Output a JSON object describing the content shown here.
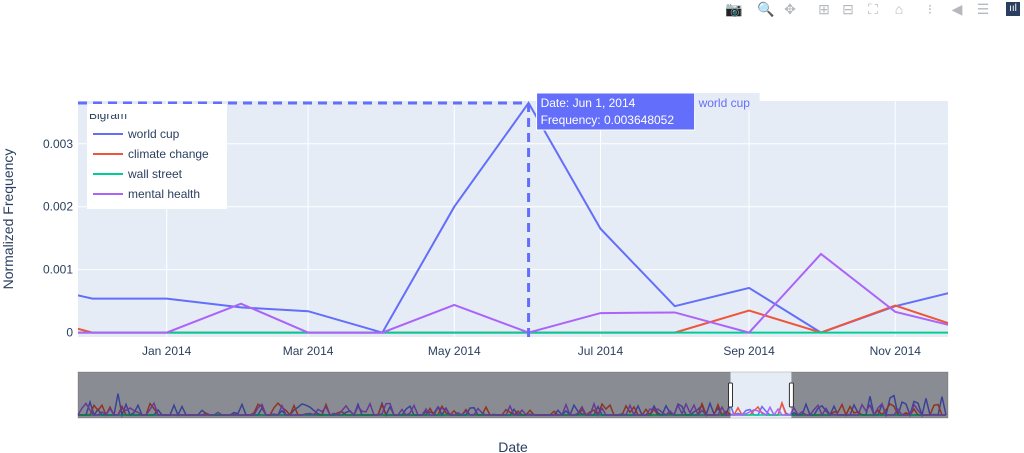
{
  "toolbar": {
    "icons": [
      "camera-icon",
      "zoom-icon",
      "pan-icon",
      "zoom-in-icon",
      "zoom-out-icon",
      "autoscale-icon",
      "reset-axes-icon",
      "spike-lines-icon",
      "hover-closest-icon",
      "hover-compare-icon",
      "plotly-logo-icon"
    ]
  },
  "chart_data": {
    "type": "line",
    "xlabel": "Date",
    "ylabel": "Normalized Frequency",
    "x_range": [
      "2013-11-25",
      "2014-11-23"
    ],
    "ylim": [
      -7e-05,
      0.00368
    ],
    "grid": true,
    "x_ticks": [
      {
        "date": "2014-01-01",
        "label": "Jan 2014"
      },
      {
        "date": "2014-03-01",
        "label": "Mar 2014"
      },
      {
        "date": "2014-05-01",
        "label": "May 2014"
      },
      {
        "date": "2014-07-01",
        "label": "Jul 2014"
      },
      {
        "date": "2014-09-01",
        "label": "Sep 2014"
      },
      {
        "date": "2014-11-01",
        "label": "Nov 2014"
      }
    ],
    "y_ticks": [
      {
        "value": 0,
        "label": "0"
      },
      {
        "value": 0.001,
        "label": "0.001"
      },
      {
        "value": 0.002,
        "label": "0.002"
      },
      {
        "value": 0.003,
        "label": "0.003"
      }
    ],
    "legend": {
      "title": "Bigram",
      "position": "top-left"
    },
    "x": [
      "2013-11-01",
      "2013-12-01",
      "2014-01-01",
      "2014-02-01",
      "2014-03-01",
      "2014-04-01",
      "2014-05-01",
      "2014-06-01",
      "2014-07-01",
      "2014-08-01",
      "2014-09-01",
      "2014-10-01",
      "2014-11-01",
      "2014-12-01"
    ],
    "series": [
      {
        "name": "world cup",
        "color": "#636efa",
        "values": [
          0.0008,
          0.00054,
          0.00054,
          0.0004,
          0.00034,
          0,
          0.002,
          0.003648052,
          0.00165,
          0.00042,
          0.00071,
          0,
          0.00042,
          0.0007
        ]
      },
      {
        "name": "climate change",
        "color": "#ef553b",
        "values": [
          0.0003,
          0,
          0,
          0,
          0,
          0,
          0,
          0,
          0,
          0,
          0.00035,
          0,
          0.00043,
          5e-05
        ]
      },
      {
        "name": "wall street",
        "color": "#00cc96",
        "values": [
          0,
          0,
          0,
          0,
          0,
          0,
          0,
          0,
          0,
          0,
          0,
          0,
          0,
          0
        ]
      },
      {
        "name": "mental health",
        "color": "#ab63fa",
        "values": [
          0,
          0,
          0,
          0.00046,
          0,
          0,
          0.00044,
          0,
          0.00031,
          0.00032,
          0,
          0.00125,
          0.00033,
          5e-05
        ]
      }
    ],
    "hover": {
      "series": "world cup",
      "date_line": "Date: Jun 1, 2014",
      "value_line": "Frequency: 0.003648052",
      "label": "world cup"
    },
    "rangeslider": {
      "visible": true,
      "selected_fraction": [
        0.75,
        0.82
      ]
    }
  }
}
